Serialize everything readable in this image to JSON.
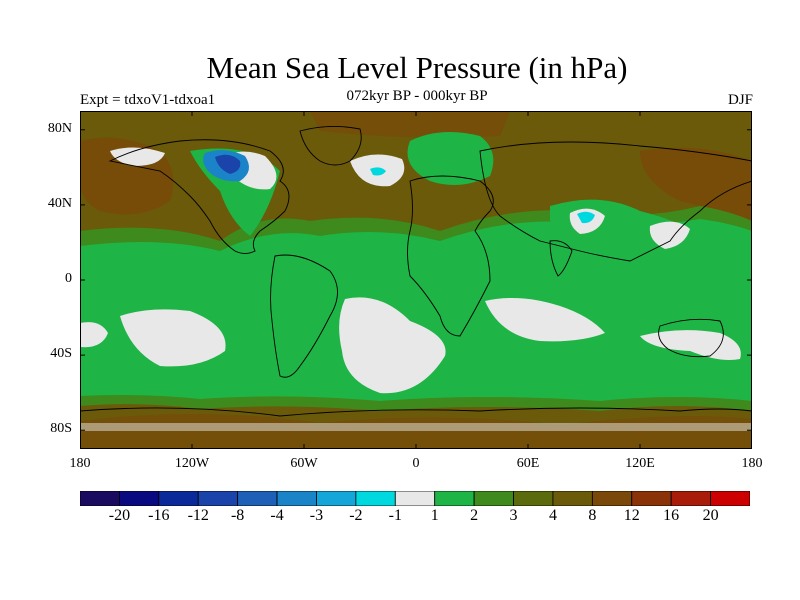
{
  "title": "Mean Sea Level Pressure (in hPa)",
  "subtitle": "072kyr BP - 000kyr BP",
  "experiment_label": "Expt = tdxoV1-tdxoa1",
  "season_label": "DJF",
  "lat_ticks": [
    {
      "label": "80N",
      "lat": 80
    },
    {
      "label": "40N",
      "lat": 40
    },
    {
      "label": "0",
      "lat": 0
    },
    {
      "label": "40S",
      "lat": -40
    },
    {
      "label": "80S",
      "lat": -80
    }
  ],
  "lon_ticks": [
    {
      "label": "180",
      "lon": -180
    },
    {
      "label": "120W",
      "lon": -120
    },
    {
      "label": "60W",
      "lon": -60
    },
    {
      "label": "0",
      "lon": 0
    },
    {
      "label": "60E",
      "lon": 60
    },
    {
      "label": "120E",
      "lon": 120
    },
    {
      "label": "180",
      "lon": 180
    }
  ],
  "colorbar": {
    "colors": [
      "#1a0a60",
      "#0a0a80",
      "#0a2a9a",
      "#1a44aa",
      "#1e5fb8",
      "#1b84c8",
      "#14a6d8",
      "#00d8e0",
      "#e8e8e8",
      "#1eb446",
      "#3e8a1c",
      "#5a6a0c",
      "#6a5a0a",
      "#7a4808",
      "#8a3208",
      "#a81c0a",
      "#cc0000"
    ],
    "labels": [
      "-20",
      "-16",
      "-12",
      "-8",
      "-4",
      "-3",
      "-2",
      "-1",
      "1",
      "2",
      "3",
      "4",
      "8",
      "12",
      "16",
      "20"
    ]
  },
  "palette": {
    "brown": "#6a5a0a",
    "dark_olive": "#5a6a0c",
    "mid_green": "#3e8a1c",
    "green": "#1eb446",
    "white": "#e8e8e8",
    "cyan": "#00d8e0",
    "blue": "#1b84c8",
    "dark_blue": "#1a44aa",
    "rust": "#7a4808"
  }
}
